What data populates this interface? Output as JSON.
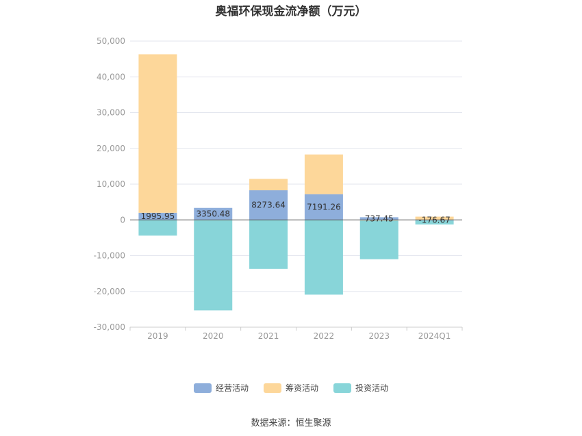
{
  "chart_data": {
    "type": "bar",
    "stacked": true,
    "title": "奥福环保现金流净额（万元）",
    "categories": [
      "2019",
      "2020",
      "2021",
      "2022",
      "2023",
      "2024Q1"
    ],
    "ylim": [
      -30000,
      50000
    ],
    "yticks": [
      50000,
      40000,
      30000,
      20000,
      10000,
      0,
      -10000,
      -20000,
      -30000
    ],
    "ytick_labels": [
      "50,000",
      "40,000",
      "30,000",
      "20,000",
      "10,000",
      "0",
      "-10,000",
      "-20,000",
      "-30,000"
    ],
    "series": [
      {
        "name": "经营活动",
        "color": "#8eaedb",
        "values": [
          1995.95,
          3350.48,
          8273.64,
          7191.26,
          737.45,
          -176.67
        ],
        "labels": [
          "1995.95",
          "3350.48",
          "8273.64",
          "7191.26",
          "737.45",
          "-176.67"
        ]
      },
      {
        "name": "筹资活动",
        "color": "#fdd79a",
        "values": [
          44300,
          -100,
          3200,
          11100,
          -200,
          900
        ]
      },
      {
        "name": "投资活动",
        "color": "#88d5d9",
        "values": [
          -4400,
          -25200,
          -13700,
          -20900,
          -10800,
          -1100
        ]
      }
    ],
    "legend_position": "bottom",
    "grid": true
  },
  "source": "数据来源：恒生聚源"
}
